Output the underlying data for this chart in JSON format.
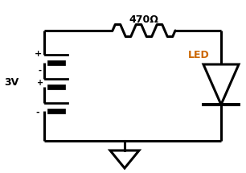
{
  "bg_color": "#ffffff",
  "wire_color": "#000000",
  "wire_lw": 2.2,
  "resistor_label": "470Ω",
  "resistor_label_color": "#000000",
  "led_label": "LED",
  "led_label_color": "#cc6600",
  "battery_label": "3V",
  "battery_label_color": "#000000",
  "plus1_label": "+",
  "minus1_label": "-",
  "plus2_label": "+",
  "minus2_label": "-",
  "figsize": [
    3.06,
    2.15
  ],
  "dpi": 100,
  "xlim": [
    0,
    306
  ],
  "ylim": [
    0,
    215
  ]
}
